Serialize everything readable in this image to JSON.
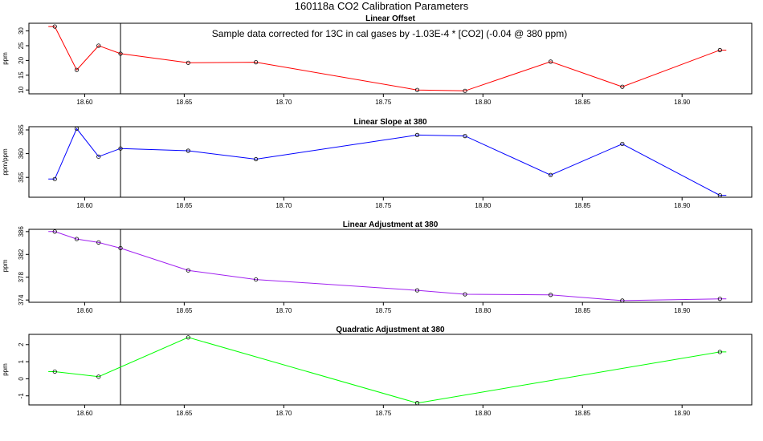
{
  "figure": {
    "title": "160118a   CO2 Calibration Parameters"
  },
  "chart_data": [
    {
      "type": "line",
      "title": "Linear Offset",
      "ylabel": "ppm",
      "xlabel": "",
      "annotation": "Sample data corrected for 13C in cal gases by -1.03E-4 * [CO2] (-0.04 @ 380 ppm)",
      "color": "#ff0000",
      "xlim": [
        18.572,
        18.935
      ],
      "ylim": [
        8.7,
        32.6
      ],
      "xticks": [
        "18.60",
        "18.65",
        "18.70",
        "18.75",
        "18.80",
        "18.85",
        "18.90"
      ],
      "yticks": [
        "10",
        "15",
        "20",
        "25",
        "30"
      ],
      "vline_x": 18.618,
      "series": [
        {
          "x": [
            18.585,
            18.596,
            18.607,
            18.618,
            18.652,
            18.686,
            18.767,
            18.791,
            18.834,
            18.87,
            18.919
          ],
          "y": [
            31.5,
            16.8,
            25.0,
            22.3,
            19.2,
            19.4,
            10.0,
            9.7,
            19.6,
            11.1,
            23.5
          ],
          "markers": [
            true,
            true,
            true,
            true,
            true,
            true,
            true,
            true,
            true,
            true,
            true
          ]
        }
      ]
    },
    {
      "type": "line",
      "title": "Linear Slope at 380",
      "ylabel": "ppm/ppm",
      "xlabel": "",
      "color": "#0000ff",
      "xlim": [
        18.572,
        18.935
      ],
      "ylim": [
        0.9506,
        1.0166
      ],
      "xticks": [
        "18.60",
        "18.65",
        "18.70",
        "18.75",
        "18.80",
        "18.85",
        "18.90"
      ],
      "yticks": [
        "355",
        "360",
        "365"
      ],
      "ytick_values": [
        0.9692,
        0.9914,
        1.0136
      ],
      "vline_x": 18.618,
      "series": [
        {
          "x": [
            18.585,
            18.596,
            18.607,
            18.618,
            18.652,
            18.686,
            18.767,
            18.791,
            18.834,
            18.87,
            18.919
          ],
          "y": [
            0.9676,
            1.0148,
            0.9886,
            0.9962,
            0.9941,
            0.9862,
            1.0088,
            1.0079,
            0.9714,
            1.0005,
            0.9524
          ],
          "markers": [
            true,
            true,
            true,
            true,
            true,
            true,
            true,
            true,
            true,
            true,
            true
          ]
        }
      ]
    },
    {
      "type": "line",
      "title": "Linear Adjustment at 380",
      "ylabel": "ppm",
      "xlabel": "",
      "color": "#a020f0",
      "xlim": [
        18.572,
        18.935
      ],
      "ylim": [
        373.6,
        386.4
      ],
      "xticks": [
        "18.60",
        "18.65",
        "18.70",
        "18.75",
        "18.80",
        "18.85",
        "18.90"
      ],
      "yticks": [
        "374",
        "378",
        "382",
        "386"
      ],
      "vline_x": 18.618,
      "series": [
        {
          "x": [
            18.585,
            18.596,
            18.607,
            18.618,
            18.652,
            18.686,
            18.767,
            18.791,
            18.834,
            18.87,
            18.919
          ],
          "y": [
            386.0,
            384.7,
            384.1,
            383.1,
            379.2,
            377.6,
            375.7,
            375.0,
            374.9,
            373.9,
            374.2
          ],
          "markers": [
            true,
            true,
            true,
            true,
            true,
            true,
            true,
            true,
            true,
            true,
            true
          ]
        }
      ]
    },
    {
      "type": "line",
      "title": "Quadratic Adjustment at 380",
      "ylabel": "ppm",
      "xlabel": "",
      "color": "#00ff00",
      "xlim": [
        18.572,
        18.935
      ],
      "ylim": [
        -1.53,
        2.6
      ],
      "xticks": [
        "18.60",
        "18.65",
        "18.70",
        "18.75",
        "18.80",
        "18.85",
        "18.90"
      ],
      "yticks": [
        "-1",
        "0",
        "1",
        "2"
      ],
      "vline_x": 18.618,
      "series": [
        {
          "x": [
            18.585,
            18.607,
            18.652,
            18.767,
            18.919
          ],
          "y": [
            0.42,
            0.12,
            2.42,
            -1.42,
            1.57
          ],
          "markers": [
            true,
            true,
            true,
            true,
            true
          ]
        }
      ]
    }
  ]
}
